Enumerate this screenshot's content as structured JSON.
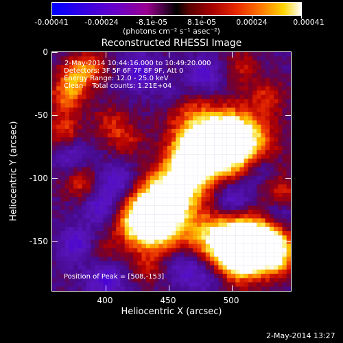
{
  "colorbar": {
    "tick_labels": [
      "-0.00041",
      "-0.00024",
      "-8.1e-05",
      "8.1e-05",
      "0.00024",
      "0.00041"
    ],
    "units": "(photons cm⁻² s⁻¹ asec⁻²)"
  },
  "figure": {
    "title": "Reconstructed RHESSI Image",
    "x_label": "Heliocentric X (arcsec)",
    "y_label": "Heliocentric Y (arcsec)",
    "x_ticks": [
      "400",
      "450",
      "500"
    ],
    "y_ticks": [
      "0",
      "-50",
      "-100",
      "-150"
    ],
    "annotations": {
      "time_range": "2-May-2014 10:44:16.000 to 10:49:20.000",
      "detectors": "Detectors: 3F 5F 6F 7F 8F 9F, Att 0",
      "energy": "Energy Range: 12.0 - 25.0 keV",
      "clean_total": "Clean    Total counts: 1.21E+04",
      "peak": "Position of Peak = [508,-153]"
    },
    "timestamp": "2-May-2014 13:27"
  },
  "chart_data": {
    "type": "heatmap",
    "title": "Reconstructed RHESSI Image",
    "xlabel": "Heliocentric X (arcsec)",
    "ylabel": "Heliocentric Y (arcsec)",
    "x_range": [
      355,
      545
    ],
    "y_range": [
      -190,
      0
    ],
    "x_ticks": [
      400,
      450,
      500
    ],
    "y_ticks": [
      0,
      -50,
      -100,
      -150
    ],
    "peak_position": [
      508,
      -153
    ],
    "color_range": [
      -0.00041,
      0.00041
    ],
    "colorbar_ticks": [
      -0.00041,
      -0.00024,
      -8.1e-05,
      8.1e-05,
      0.00024,
      0.00041
    ],
    "energy_range_keV": [
      12.0,
      25.0
    ],
    "total_counts": 12100
  }
}
